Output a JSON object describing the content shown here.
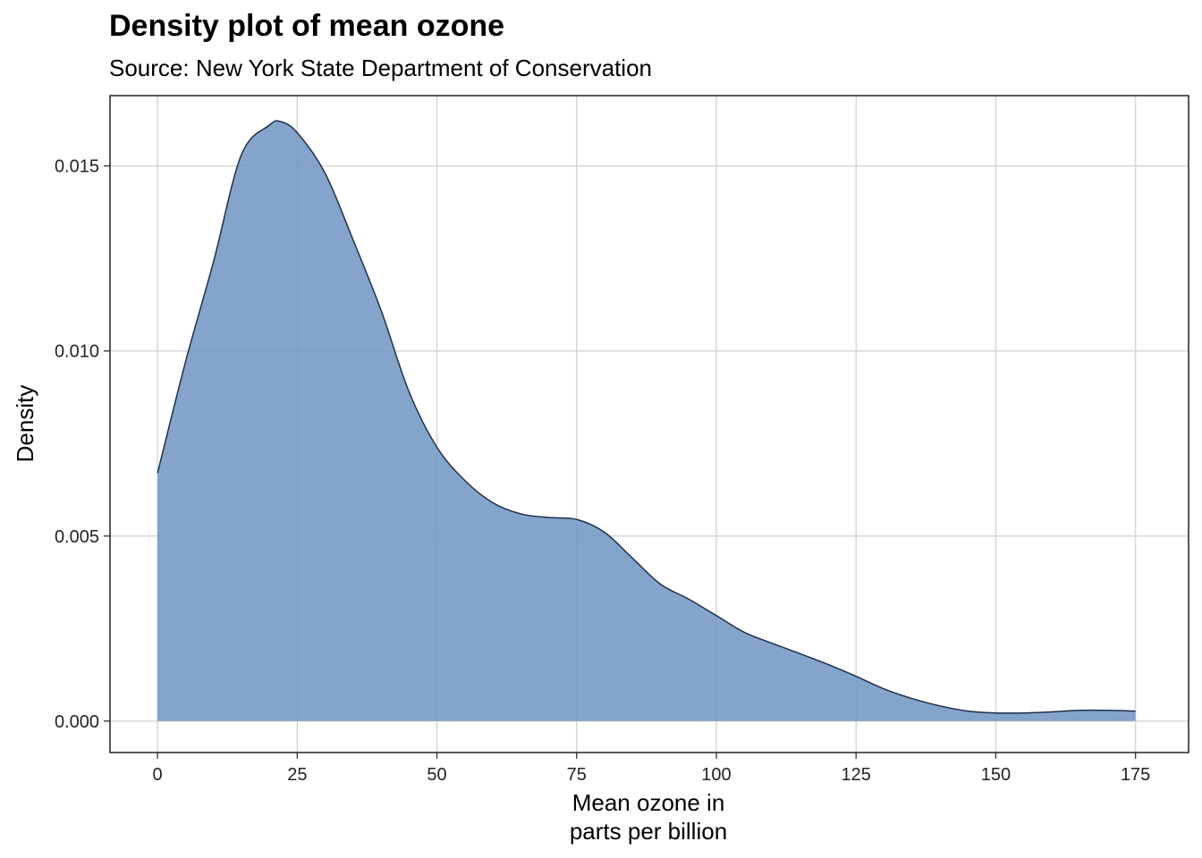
{
  "chart_data": {
    "type": "area",
    "title": "Density plot of mean ozone",
    "subtitle": "Source: New York State Department of Conservation",
    "xlabel_lines": [
      "Mean ozone in",
      "parts per billion"
    ],
    "ylabel": "Density",
    "xlim": [
      -8.5,
      184.5
    ],
    "ylim": [
      -0.00085,
      0.0169
    ],
    "xticks": [
      0,
      25,
      50,
      75,
      100,
      125,
      150,
      175
    ],
    "xtick_labels": [
      "0",
      "25",
      "50",
      "75",
      "100",
      "125",
      "150",
      "175"
    ],
    "yticks": [
      0,
      0.005,
      0.01,
      0.015
    ],
    "ytick_labels": [
      "0.000",
      "0.005",
      "0.010",
      "0.015"
    ],
    "grid": true,
    "fill_color": "#6f94c2",
    "line_color": "#1f2f4a",
    "x": [
      0,
      5,
      10,
      15,
      20,
      22,
      25,
      30,
      35,
      40,
      45,
      50,
      55,
      60,
      65,
      70,
      75,
      80,
      85,
      90,
      95,
      100,
      105,
      110,
      115,
      120,
      125,
      130,
      135,
      140,
      145,
      150,
      155,
      160,
      165,
      170,
      175
    ],
    "y": [
      0.0067,
      0.0097,
      0.0124,
      0.0153,
      0.0161,
      0.0162,
      0.0159,
      0.0148,
      0.013,
      0.0111,
      0.0089,
      0.0074,
      0.0065,
      0.0059,
      0.0056,
      0.0055,
      0.00545,
      0.0051,
      0.0044,
      0.0037,
      0.0033,
      0.00285,
      0.0024,
      0.0021,
      0.00182,
      0.00153,
      0.00121,
      0.00087,
      0.00061,
      0.00041,
      0.00027,
      0.00022,
      0.00022,
      0.00025,
      0.00029,
      0.00029,
      0.00027
    ]
  }
}
